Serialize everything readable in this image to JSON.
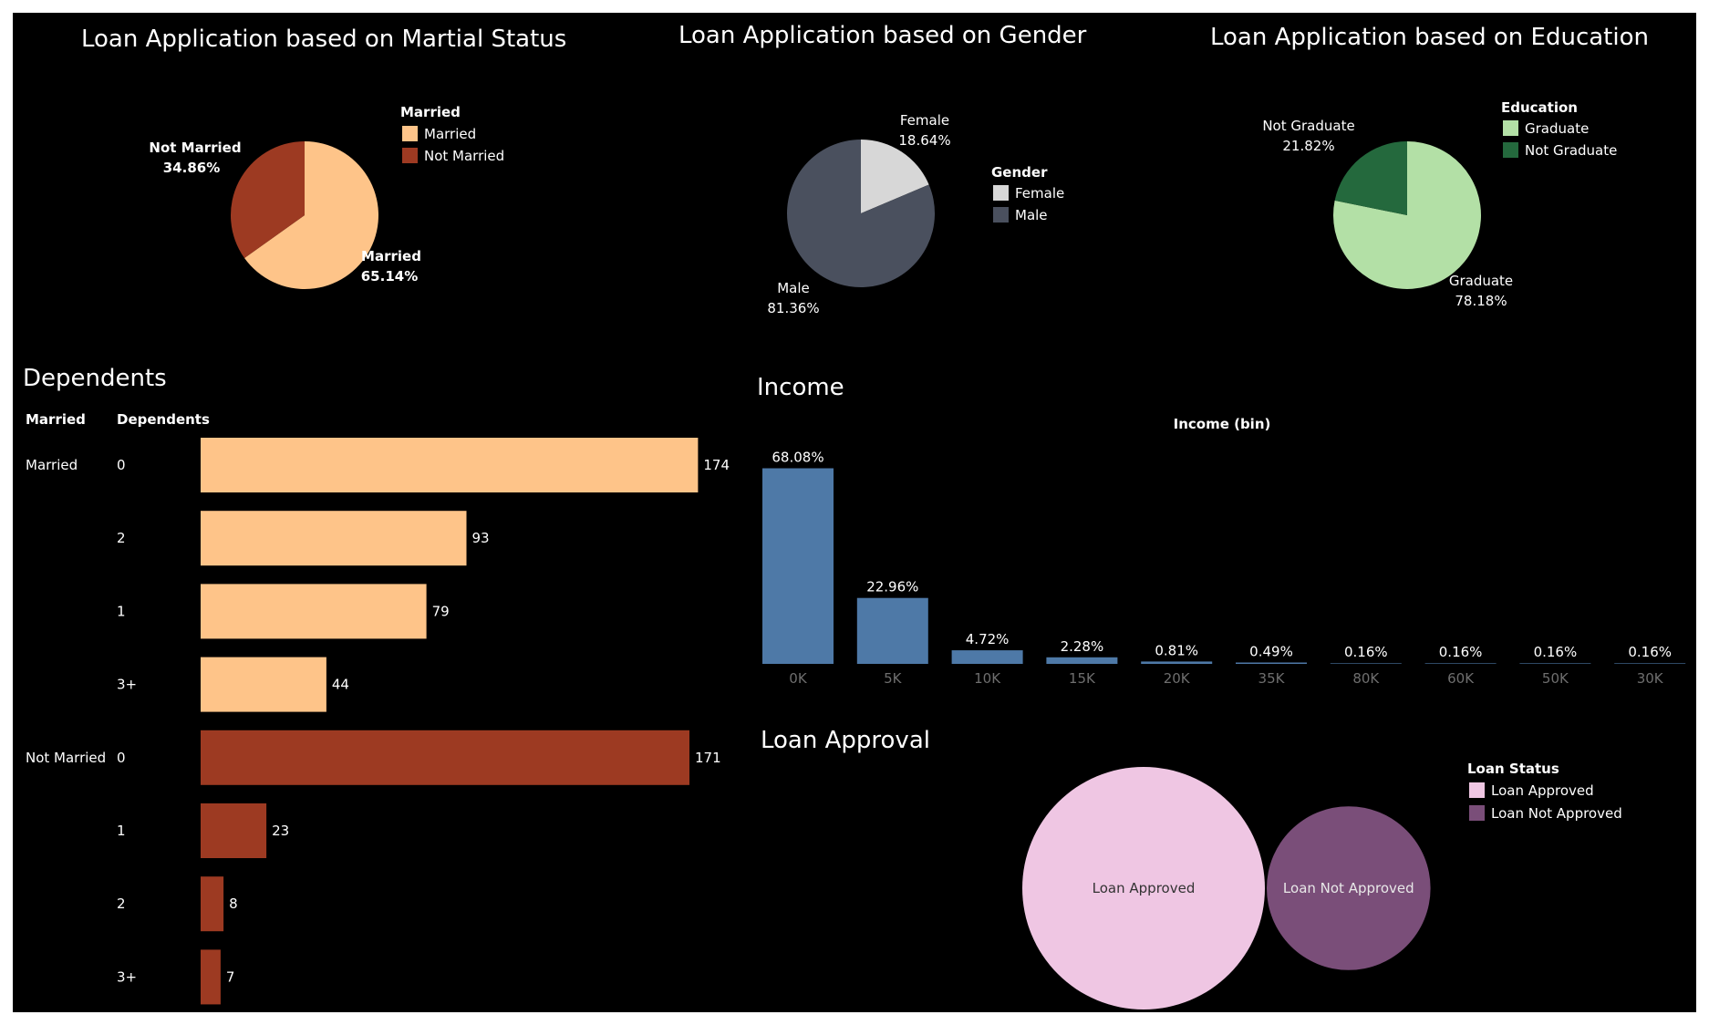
{
  "colors": {
    "married": "#FEC489",
    "not_married": "#9D3A22",
    "female": "#D7D7D7",
    "male": "#4A505E",
    "graduate": "#B3E0A6",
    "not_graduate": "#24693D",
    "income_bar": "#4E79A7",
    "loan_approved": "#EFC6E3",
    "loan_not_approved": "#7A4E79",
    "text": "#FFFFFF",
    "axis_text": "#6E6E6E"
  },
  "chart_data": [
    {
      "type": "pie",
      "title": "Loan Application based on Martial Status",
      "legend_title": "Married",
      "legend_placement": "right",
      "labels": [
        "Married",
        "Not Married"
      ],
      "values": [
        65.14,
        34.86
      ],
      "value_labels": [
        "65.14%",
        "34.86%"
      ]
    },
    {
      "type": "pie",
      "title": "Loan Application based on Gender",
      "legend_title": "Gender",
      "legend_placement": "right",
      "labels": [
        "Female",
        "Male"
      ],
      "values": [
        18.64,
        81.36
      ],
      "value_labels": [
        "18.64%",
        "81.36%"
      ]
    },
    {
      "type": "pie",
      "title": "Loan Application based on Education",
      "legend_title": "Education",
      "legend_placement": "right",
      "labels": [
        "Graduate",
        "Not Graduate"
      ],
      "values": [
        78.18,
        21.82
      ],
      "value_labels": [
        "78.18%",
        "21.82%"
      ]
    },
    {
      "type": "bar",
      "orientation": "horizontal",
      "title": "Dependents",
      "column_headers": [
        "Married",
        "Dependents"
      ],
      "groups": [
        {
          "name": "Married",
          "categories": [
            "0",
            "2",
            "1",
            "3+"
          ],
          "values": [
            174,
            93,
            79,
            44
          ]
        },
        {
          "name": "Not Married",
          "categories": [
            "0",
            "1",
            "2",
            "3+"
          ],
          "values": [
            171,
            23,
            8,
            7
          ]
        }
      ]
    },
    {
      "type": "bar",
      "title": "Income",
      "xlabel": "Income (bin)",
      "categories": [
        "0K",
        "5K",
        "10K",
        "15K",
        "20K",
        "35K",
        "80K",
        "60K",
        "50K",
        "30K"
      ],
      "values": [
        68.08,
        22.96,
        4.72,
        2.28,
        0.81,
        0.49,
        0.16,
        0.16,
        0.16,
        0.16
      ],
      "value_labels": [
        "68.08%",
        "22.96%",
        "4.72%",
        "2.28%",
        "0.81%",
        "0.49%",
        "0.16%",
        "0.16%",
        "0.16%",
        "0.16%"
      ]
    },
    {
      "type": "bubble",
      "title": "Loan Approval",
      "legend_title": "Loan Status",
      "legend_placement": "right",
      "labels": [
        "Loan Approved",
        "Loan Not Approved"
      ],
      "relative_size": [
        1.0,
        0.675
      ]
    }
  ]
}
